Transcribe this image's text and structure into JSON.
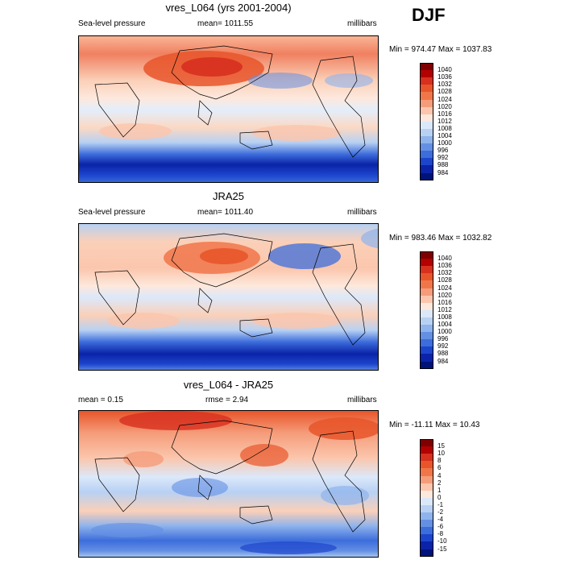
{
  "season": "DJF",
  "panels": [
    {
      "title": "vres_L064 (yrs 2001-2004)",
      "left_label": "Sea-level pressure",
      "center_label": "mean= 1011.55",
      "right_label": "millibars",
      "minmax": "Min = 974.47 Max = 1037.83",
      "colorbar": [
        "1040",
        "1036",
        "1032",
        "1028",
        "1024",
        "1020",
        "1016",
        "1012",
        "1008",
        "1004",
        "1000",
        "996",
        "992",
        "988",
        "984"
      ]
    },
    {
      "title": "JRA25",
      "left_label": "Sea-level pressure",
      "center_label": "mean= 1011.40",
      "right_label": "millibars",
      "minmax": "Min = 983.46 Max = 1032.82",
      "colorbar": [
        "1040",
        "1036",
        "1032",
        "1028",
        "1024",
        "1020",
        "1016",
        "1012",
        "1008",
        "1004",
        "1000",
        "996",
        "992",
        "988",
        "984"
      ]
    },
    {
      "title": "vres_L064 - JRA25",
      "left_label": "mean =   0.15",
      "center_label": "rmse =   2.94",
      "right_label": "millibars",
      "minmax": "Min = -11.11 Max =  10.43",
      "colorbar": [
        "15",
        "10",
        "8",
        "6",
        "4",
        "2",
        "1",
        "0",
        "-1",
        "-2",
        "-4",
        "-6",
        "-8",
        "-10",
        "-15"
      ]
    }
  ],
  "colors": [
    "#7f0000",
    "#b30000",
    "#d7301f",
    "#e8552a",
    "#f0764a",
    "#f59c7a",
    "#fbc6ad",
    "#fde8dc",
    "#dbe8fa",
    "#b8d1f3",
    "#8fb3ec",
    "#6490e4",
    "#3d6ddb",
    "#1c45cc",
    "#0a23a8",
    "#00137a"
  ]
}
